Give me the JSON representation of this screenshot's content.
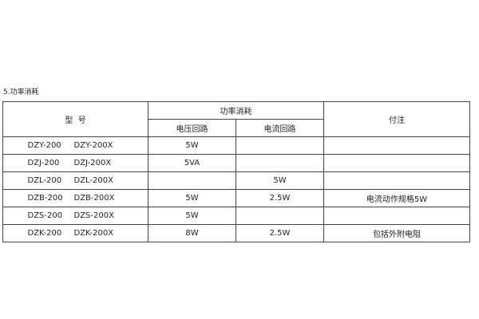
{
  "caption": "5.功率消耗",
  "header": {
    "model": "型  号",
    "power": "功率消耗",
    "voltage": "电压回路",
    "current": "电流回路",
    "note": "付注"
  },
  "rows": [
    {
      "m1": "DZY-200",
      "m2": "DZY-200X",
      "v": "5W",
      "c": "",
      "n": ""
    },
    {
      "m1": "DZJ-200",
      "m2": "DZJ-200X",
      "v": "5VA",
      "c": "",
      "n": ""
    },
    {
      "m1": "DZL-200",
      "m2": "DZL-200X",
      "v": "",
      "c": "5W",
      "n": ""
    },
    {
      "m1": "DZB-200",
      "m2": "DZB-200X",
      "v": "5W",
      "c": "2.5W",
      "n": "电流动作规格5W"
    },
    {
      "m1": "DZS-200",
      "m2": "DZS-200X",
      "v": "5W",
      "c": "",
      "n": ""
    },
    {
      "m1": "DZK-200",
      "m2": "DZK-200X",
      "v": "8W",
      "c": "2.5W",
      "n": "包括外附电阻"
    }
  ]
}
